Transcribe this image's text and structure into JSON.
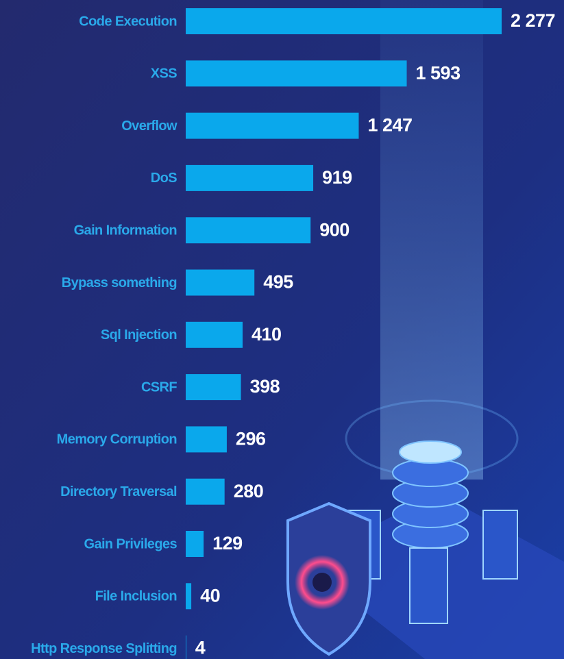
{
  "chart_data": {
    "type": "bar",
    "orientation": "horizontal",
    "categories": [
      "Code Execution",
      "XSS",
      "Overflow",
      "DoS",
      "Gain Information",
      "Bypass something",
      "Sql Injection",
      "CSRF",
      "Memory Corruption",
      "Directory Traversal",
      "Gain Privileges",
      "File Inclusion",
      "Http Response Splitting"
    ],
    "values": [
      2277,
      1593,
      1247,
      919,
      900,
      495,
      410,
      398,
      296,
      280,
      129,
      40,
      4
    ],
    "value_labels": [
      "2 277",
      "1 593",
      "1 247",
      "919",
      "900",
      "495",
      "410",
      "398",
      "296",
      "280",
      "129",
      "40",
      "4"
    ],
    "color": "#0aa8ec"
  }
}
